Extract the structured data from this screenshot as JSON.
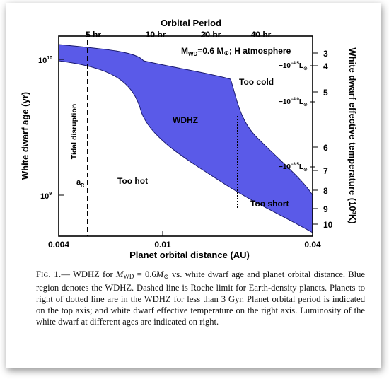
{
  "figure": {
    "top_axis_title": "Orbital Period",
    "top_ticks": [
      "5 hr",
      "10 hr",
      "20 hr",
      "40 hr"
    ],
    "bottom_axis_title": "Planet orbital distance (AU)",
    "bottom_ticks": [
      "0.004",
      "0.01",
      "0.04"
    ],
    "left_axis_title": "White dwarf age (yr)",
    "left_ticks": [
      {
        "base": "10",
        "exp": "10"
      },
      {
        "base": "10",
        "exp": "9"
      }
    ],
    "right_axis_title": "White dwarf effective temperature (10³K)",
    "right_ticks": [
      "3",
      "4",
      "5",
      "6",
      "7",
      "8",
      "9",
      "10"
    ],
    "annotation_main_prefix": "M",
    "annotation_main_sub": "WD",
    "annotation_main_rest": "=0.6 M",
    "annotation_main_sun": "⊙",
    "annotation_main_suffix": "; H atmosphere",
    "region_wdhz": "WDHZ",
    "region_too_cold": "Too cold",
    "region_too_hot": "Too hot",
    "region_too_short": "Too short",
    "region_tidal": "Tidal disruption",
    "roche_label": "a",
    "roche_sub": "R",
    "luminosities": [
      {
        "prefix": "−10",
        "exp": "−4.5",
        "L": "L",
        "sun": "⊙"
      },
      {
        "prefix": "−10",
        "exp": "−4.0",
        "L": "L",
        "sun": "⊙"
      },
      {
        "prefix": "−10",
        "exp": "−3.5",
        "L": "L",
        "sun": "⊙"
      }
    ],
    "colors": {
      "region_fill": "#5a5ae8",
      "region_stroke": "#1a1a6e"
    }
  },
  "caption": {
    "fig_label": "Fig. 1.",
    "dash": "— WDHZ for ",
    "m_sym": "M",
    "m_sub": "WD",
    "eq": " = 0.6",
    "m2_sym": "M",
    "m2_sub": "⊙",
    "rest": " vs. white dwarf age and planet orbital distance. Blue region denotes the WDHZ. Dashed line is Roche limit for Earth-density planets. Planets to right of dotted line are in the WDHZ for less than 3 Gyr. Planet orbital period is indicated on the top axis; and white dwarf effective temperature on the right axis. Luminosity of the white dwarf at different ages are indicated on right."
  }
}
